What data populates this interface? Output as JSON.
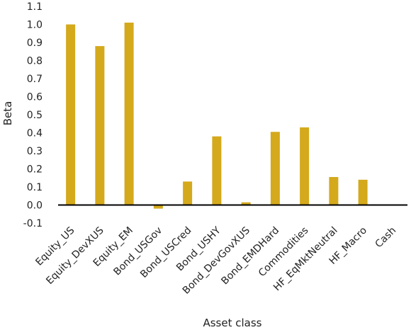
{
  "chart_data": {
    "type": "bar",
    "xlabel": "Asset class",
    "ylabel": "Beta",
    "ylim": [
      -0.1,
      1.1
    ],
    "yticks": [
      "1.1",
      "1.0",
      "0.9",
      "0.8",
      "0.7",
      "0.6",
      "0.5",
      "0.4",
      "0.3",
      "0.2",
      "0.1",
      "0.0",
      "-0.1"
    ],
    "grid": false,
    "bar_color": "#d4a91c",
    "categories": [
      "Equity_US",
      "Equity_DevXUS",
      "Equity_EM",
      "Bond_USGov",
      "Bond_USCred",
      "Bond_USHY",
      "Bond_DevGovXUS",
      "Bond_EMDHard",
      "Commodities",
      "HF_EqMktNeutral",
      "HF_Macro",
      "Cash"
    ],
    "values": [
      1.0,
      0.88,
      1.01,
      -0.02,
      0.13,
      0.38,
      0.015,
      0.405,
      0.43,
      0.155,
      0.14,
      0.0
    ]
  }
}
